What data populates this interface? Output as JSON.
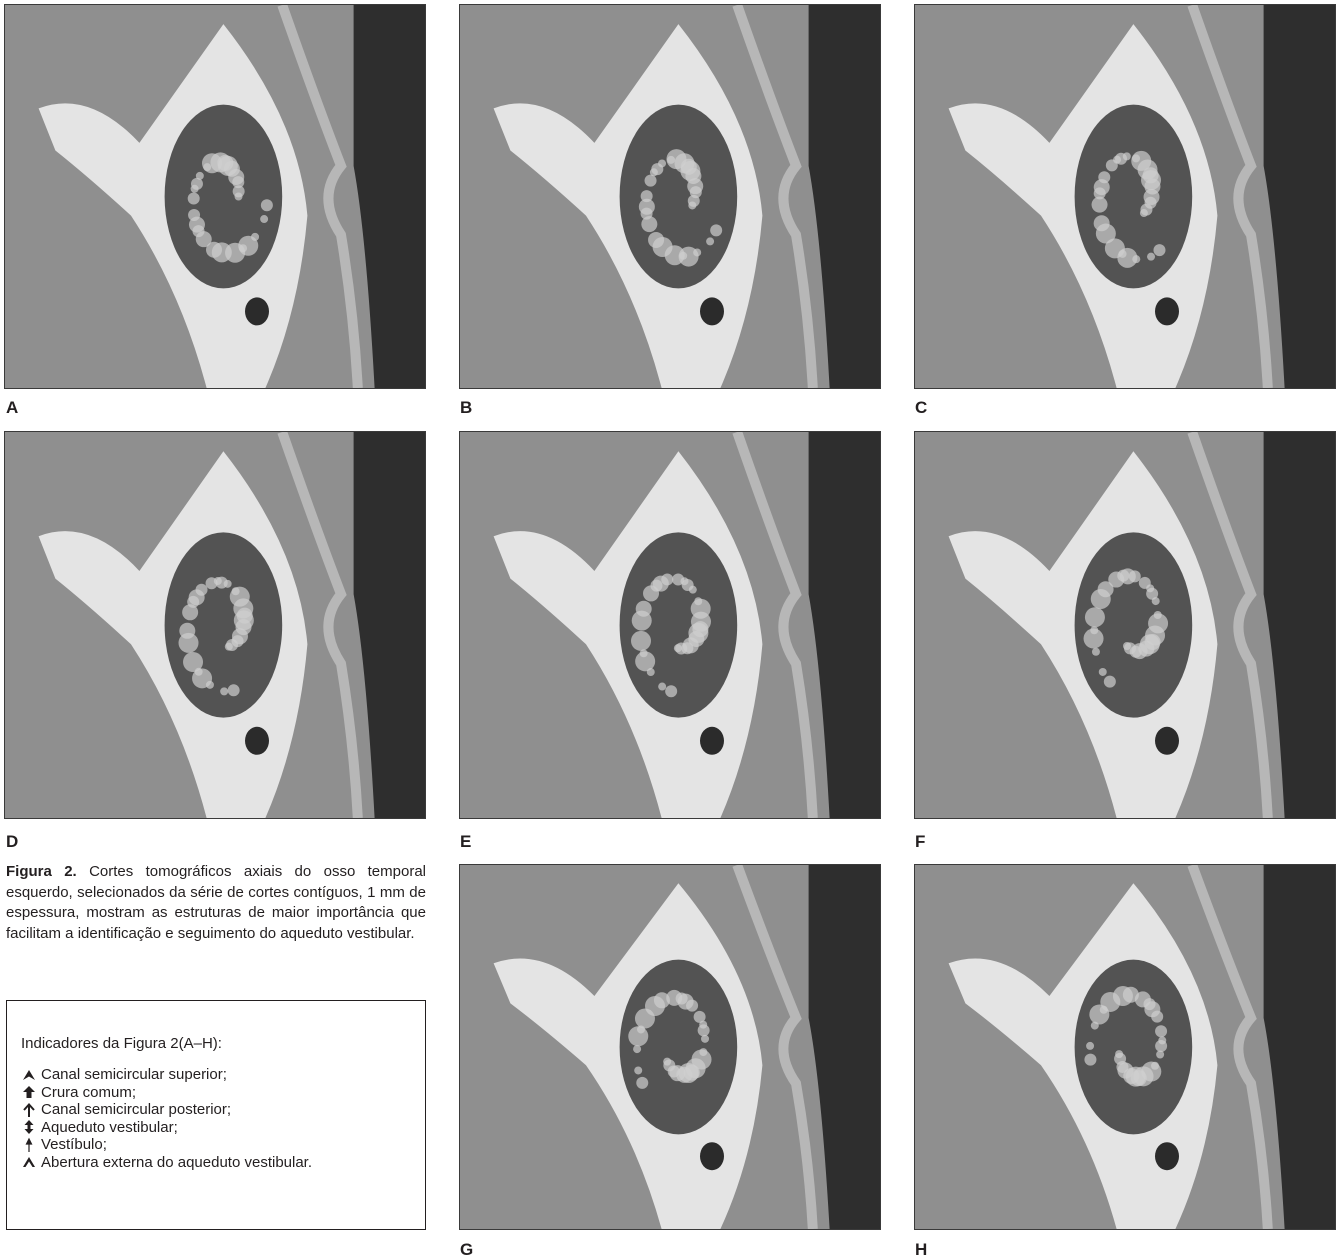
{
  "figure": {
    "panels": [
      {
        "id": "A",
        "label": "A"
      },
      {
        "id": "B",
        "label": "B"
      },
      {
        "id": "C",
        "label": "C"
      },
      {
        "id": "D",
        "label": "D"
      },
      {
        "id": "E",
        "label": "E"
      },
      {
        "id": "F",
        "label": "F"
      },
      {
        "id": "G",
        "label": "G"
      },
      {
        "id": "H",
        "label": "H"
      }
    ],
    "caption_title": "Figura 2.",
    "caption_text": " Cortes tomográficos axiais do osso temporal esquerdo, selecionados da série de cortes contíguos, 1 mm de espessura, mostram as estruturas de maior importância que facilitam a identificação e seguimento do aqueduto vestibular."
  },
  "legend": {
    "title": "Indicadores da Figura 2(A–H):",
    "items": [
      {
        "icon": "arrowhead-icon",
        "label": "Canal semicircular superior;"
      },
      {
        "icon": "thick-arrow-icon",
        "label": "Crura comum;"
      },
      {
        "icon": "thin-arrow-icon",
        "label": "Canal semicircular posterior;"
      },
      {
        "icon": "double-headed-arrow-icon",
        "label": "Aqueduto vestibular;"
      },
      {
        "icon": "small-arrow-icon",
        "label": "Vestíbulo;"
      },
      {
        "icon": "chevron-icon",
        "label": "Abertura externa do aqueduto vestibular."
      }
    ]
  },
  "colors": {
    "background": "#ffffff",
    "scan_gray": "#8f8f8f",
    "bone": "#e4e4e4",
    "air": "#2e2e2e",
    "text": "#231f20"
  }
}
